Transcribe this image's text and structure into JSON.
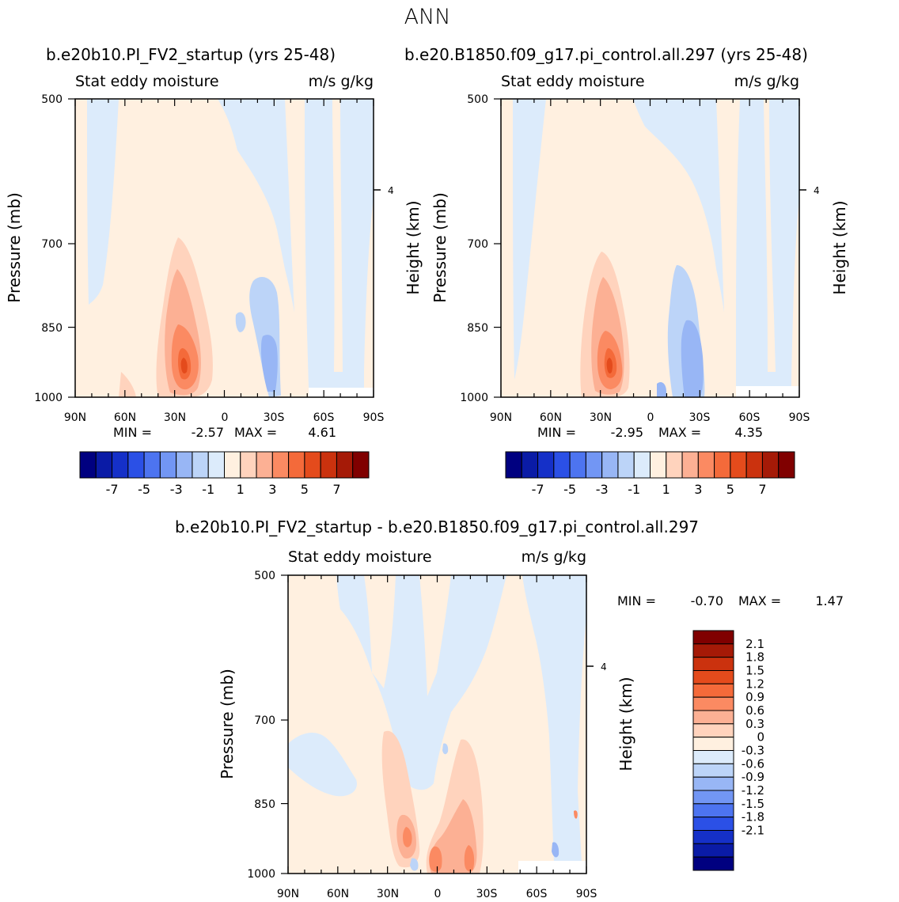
{
  "figure": {
    "title": "ANN"
  },
  "colors": {
    "pos": [
      "#fff0e0",
      "#ffd3bd",
      "#fcb094",
      "#fb8a62",
      "#f46a3a",
      "#e44b1c",
      "#cb320e",
      "#a51a07",
      "#800000"
    ],
    "neg": [
      "#dcebfb",
      "#bcd4f8",
      "#98b6f5",
      "#7296f4",
      "#4d74f0",
      "#2b50e6",
      "#1530c8",
      "#0a1ba6",
      "#000080"
    ],
    "outline": "#000000"
  },
  "chart_data": [
    {
      "type": "contour",
      "id": "left",
      "title": "b.e20b10.PI_FV2_startup (yrs 25-48)",
      "subtitle_left": "Stat eddy moisture",
      "subtitle_right": "m/s g/kg",
      "ylabel": "Pressure (mb)",
      "ylabel_right": "Height (km)",
      "right_tick": "4",
      "xlim": [
        90,
        -90
      ],
      "ylim": [
        1000,
        500
      ],
      "x_ticks": [
        {
          "label": "90N",
          "value": 90
        },
        {
          "label": "60N",
          "value": 60
        },
        {
          "label": "30N",
          "value": 30
        },
        {
          "label": "0",
          "value": 0
        },
        {
          "label": "30S",
          "value": -30
        },
        {
          "label": "60S",
          "value": -60
        },
        {
          "label": "90S",
          "value": -90
        }
      ],
      "y_ticks": [
        "500",
        "700",
        "850",
        "1000"
      ],
      "stats": {
        "min_label": "MIN =",
        "min": "-2.57",
        "max_label": "MAX =",
        "max": "4.61"
      },
      "colorbar": {
        "orientation": "horizontal",
        "labels": [
          "-7",
          "-5",
          "-3",
          "-1",
          "1",
          "3",
          "5",
          "7"
        ]
      },
      "features": [
        {
          "name": "subtropical maximum",
          "lat": 27,
          "p": 920,
          "value": 4.6
        },
        {
          "name": "southern subtropical minimum",
          "lat": -28,
          "p": 930,
          "value": -2.5
        }
      ]
    },
    {
      "type": "contour",
      "id": "right",
      "title": "b.e20.B1850.f09_g17.pi_control.all.297 (yrs 25-48)",
      "subtitle_left": "Stat eddy moisture",
      "subtitle_right": "m/s g/kg",
      "ylabel": "Pressure (mb)",
      "ylabel_right": "Height (km)",
      "right_tick": "4",
      "xlim": [
        90,
        -90
      ],
      "ylim": [
        1000,
        500
      ],
      "x_ticks": [
        {
          "label": "90N",
          "value": 90
        },
        {
          "label": "60N",
          "value": 60
        },
        {
          "label": "30N",
          "value": 30
        },
        {
          "label": "0",
          "value": 0
        },
        {
          "label": "30S",
          "value": -30
        },
        {
          "label": "60S",
          "value": -60
        },
        {
          "label": "90S",
          "value": -90
        }
      ],
      "y_ticks": [
        "500",
        "700",
        "850",
        "1000"
      ],
      "stats": {
        "min_label": "MIN =",
        "min": "-2.95",
        "max_label": "MAX =",
        "max": "4.35"
      },
      "colorbar": {
        "orientation": "horizontal",
        "labels": [
          "-7",
          "-5",
          "-3",
          "-1",
          "1",
          "3",
          "5",
          "7"
        ]
      },
      "features": [
        {
          "name": "subtropical maximum",
          "lat": 25,
          "p": 925,
          "value": 4.35
        },
        {
          "name": "southern subtropical minimum",
          "lat": -25,
          "p": 900,
          "value": -2.9
        }
      ]
    },
    {
      "type": "contour",
      "id": "diff",
      "title": "b.e20b10.PI_FV2_startup - b.e20.B1850.f09_g17.pi_control.all.297",
      "subtitle_left": "Stat eddy moisture",
      "subtitle_right": "m/s g/kg",
      "ylabel": "Pressure (mb)",
      "ylabel_right": "Height (km)",
      "right_tick": "4",
      "xlim": [
        90,
        -90
      ],
      "ylim": [
        1000,
        500
      ],
      "x_ticks": [
        {
          "label": "90N",
          "value": 90
        },
        {
          "label": "60N",
          "value": 60
        },
        {
          "label": "30N",
          "value": 30
        },
        {
          "label": "0",
          "value": 0
        },
        {
          "label": "30S",
          "value": -30
        },
        {
          "label": "60S",
          "value": -60
        },
        {
          "label": "90S",
          "value": -90
        }
      ],
      "y_ticks": [
        "500",
        "700",
        "850",
        "1000"
      ],
      "stats": {
        "min_label": "MIN =",
        "min": "-0.70",
        "max_label": "MAX =",
        "max": "1.47"
      },
      "colorbar": {
        "orientation": "vertical",
        "labels": [
          "2.1",
          "1.8",
          "1.5",
          "1.2",
          "0.9",
          "0.6",
          "0.3",
          "0",
          "-0.3",
          "-0.6",
          "-0.9",
          "-1.2",
          "-1.5",
          "-1.8",
          "-2.1"
        ]
      },
      "features": [
        {
          "name": "equatorial maximum",
          "lat": -20,
          "p": 950,
          "value": 1.4
        },
        {
          "name": "northern subtropical maximum",
          "lat": 17,
          "p": 930,
          "value": 1.3
        }
      ]
    }
  ]
}
